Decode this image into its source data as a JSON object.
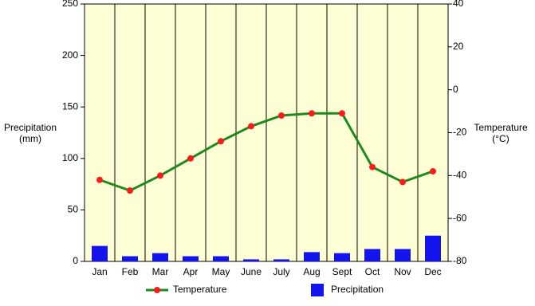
{
  "chart_data": {
    "type": "combo",
    "categories": [
      "Jan",
      "Feb",
      "Mar",
      "Apr",
      "May",
      "June",
      "July",
      "Aug",
      "Sept",
      "Oct",
      "Nov",
      "Dec"
    ],
    "series": [
      {
        "name": "Temperature",
        "type": "line",
        "axis": "y2",
        "color": "#1e8a1e",
        "marker_color": "#ff1a1a",
        "values": [
          -42,
          -47,
          -40,
          -32,
          -24,
          -17,
          -12,
          -11,
          -11,
          -36,
          -43,
          -38
        ]
      },
      {
        "name": "Precipitation",
        "type": "bar",
        "axis": "y",
        "color": "#1414ee",
        "values": [
          15,
          5,
          8,
          5,
          5,
          2,
          2,
          9,
          8,
          12,
          12,
          25
        ]
      }
    ],
    "y_label": [
      "Precipitation",
      "(mm)"
    ],
    "y2_label": [
      "Temperature",
      "(°C)"
    ],
    "ylim": [
      0,
      250
    ],
    "yticks": [
      0,
      50,
      100,
      150,
      200,
      250
    ],
    "y2lim": [
      -80,
      40
    ],
    "y2ticks": [
      -80,
      -60,
      -40,
      -20,
      0,
      20,
      40
    ],
    "background": "#ffffd6"
  }
}
